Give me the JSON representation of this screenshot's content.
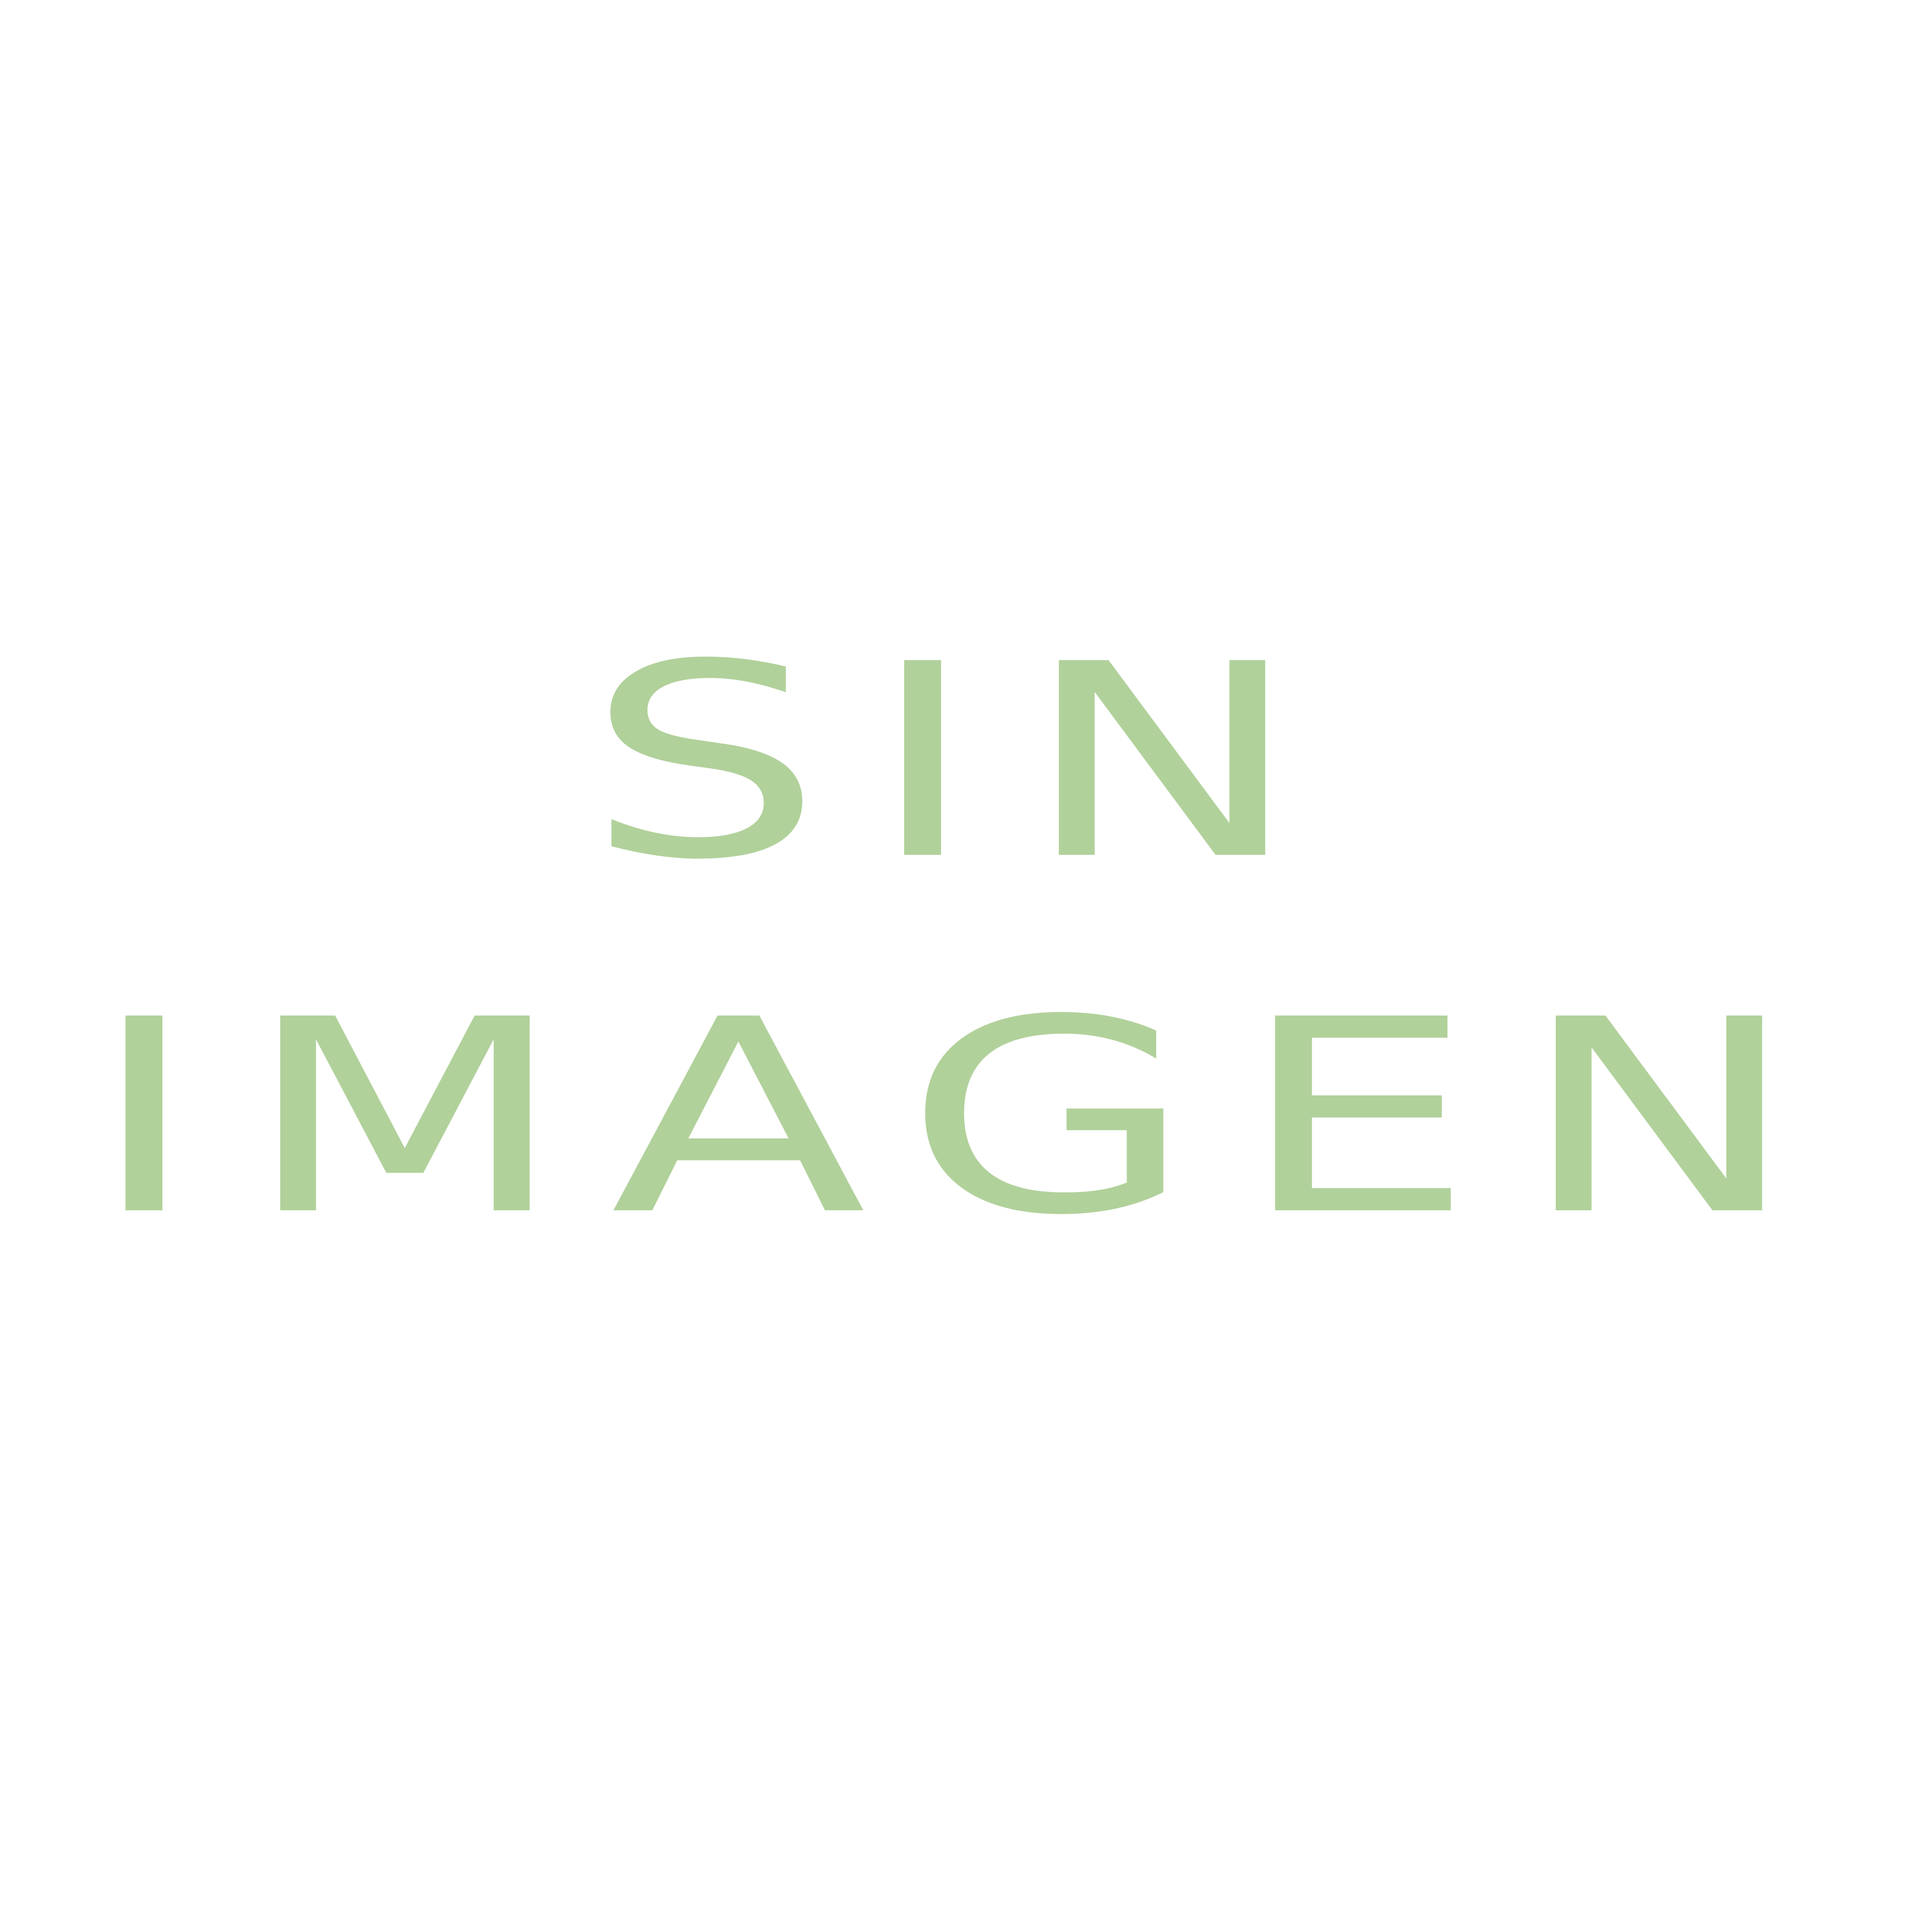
{
  "placeholder": {
    "line1": "SIN",
    "line2": "IMAGEN",
    "text_color": "#b1d19b",
    "background_color": "#ffffff"
  }
}
